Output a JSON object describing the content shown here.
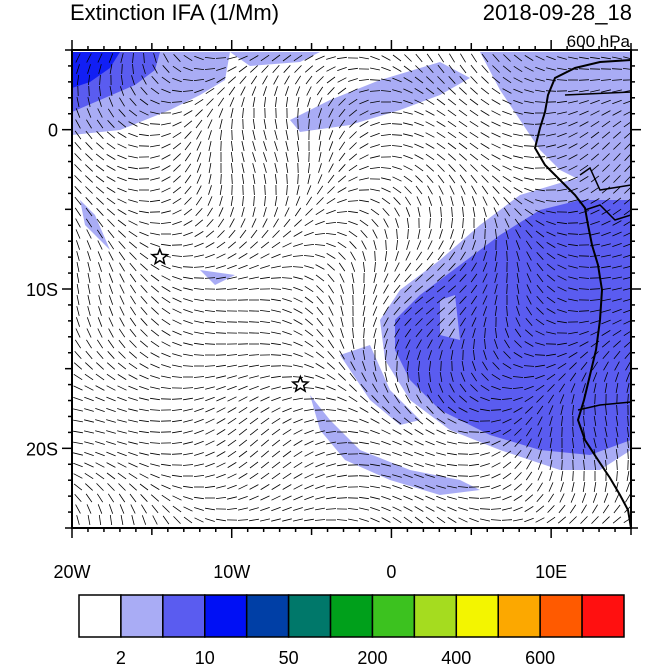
{
  "header": {
    "title": "Extinction IFA (1/Mm)",
    "datetime": "2018-09-28_18",
    "level": "600 hPa"
  },
  "map": {
    "lon_labels": [
      "20W",
      "10W",
      "0",
      "10E"
    ],
    "lat_labels": [
      "0",
      "10S",
      "20S"
    ],
    "lon_range": [
      -20,
      15
    ],
    "lat_range": [
      -25,
      5
    ],
    "stations": [
      {
        "name": "star-station-1",
        "lon": -14.5,
        "lat": -8
      },
      {
        "name": "star-station-2",
        "lon": -5.7,
        "lat": -16
      }
    ]
  },
  "colorbar": {
    "colors": [
      "#ffffff",
      "#a9acf5",
      "#5a5cf0",
      "#0010f5",
      "#003fa6",
      "#00786a",
      "#00a01b",
      "#3cc21f",
      "#a5dc1f",
      "#f3f500",
      "#fca800",
      "#ff5a00",
      "#ff1010"
    ],
    "labels": [
      "2",
      "10",
      "50",
      "200",
      "400",
      "600"
    ]
  }
}
